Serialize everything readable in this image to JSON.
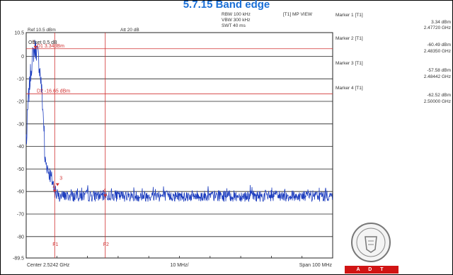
{
  "title": "5.7.15 Band edge",
  "settings": {
    "rbw": "RBW 100 kHz",
    "vbw": "VBW 300 kHz",
    "swt": "SWT 40 ms",
    "trace_mode": "[T1] MP VIEW",
    "ref_level": "Ref 10.5 dBm",
    "attenuation": "Att  20 dB",
    "offset": "Offset 0.5 dB"
  },
  "markers": [
    {
      "title": "Marker 1 [T1]",
      "level": "3.34 dBm",
      "freq": "2.47720 GHz"
    },
    {
      "title": "Marker 2 [T1]",
      "level": "-60.49 dBm",
      "freq": "2.48350 GHz"
    },
    {
      "title": "Marker 3 [T1]",
      "level": "-57.58 dBm",
      "freq": "2.48442 GHz"
    },
    {
      "title": "Marker 4 [T1]",
      "level": "-62.52 dBm",
      "freq": "2.50000 GHz"
    }
  ],
  "plot_markers": [
    {
      "label": "1",
      "x_mhz": 2.4772,
      "level": 3.34
    },
    {
      "label": "2",
      "x_mhz": 2.4835,
      "level": -60.49
    },
    {
      "label": "3",
      "x_mhz": 2.48442,
      "level": -57.58
    },
    {
      "label": "4",
      "x_mhz": 2.5,
      "level": -62.52
    }
  ],
  "display_lines": {
    "d1": {
      "label": "D1  3.34dBm",
      "level": 3.34
    },
    "d2": {
      "label": "D2 -16.65 dBm",
      "level": -16.65
    }
  },
  "frequency_lines": {
    "f1": {
      "label": "F1",
      "freq_ghz": 2.4835
    },
    "f2": {
      "label": "F2",
      "freq_ghz": 2.5
    }
  },
  "axis": {
    "y_ticks": [
      "10.5",
      "0",
      "-10",
      "-20",
      "-30",
      "-40",
      "-50",
      "-60",
      "-70",
      "-80",
      "-89.5"
    ],
    "y_values": [
      10.5,
      0,
      -10,
      -20,
      -30,
      -40,
      -50,
      -60,
      -70,
      -80,
      -89.5
    ],
    "center": "Center 2.5242 GHz",
    "per_div": "10 MHz/",
    "span": "Span 100 MHz",
    "center_ghz": 2.5242,
    "span_mhz": 100
  },
  "logo_text": "A D T",
  "colors": {
    "title": "#1a6fd6",
    "trace": "#1f3fbf",
    "marker": "#d03030",
    "grid": "#222222"
  }
}
